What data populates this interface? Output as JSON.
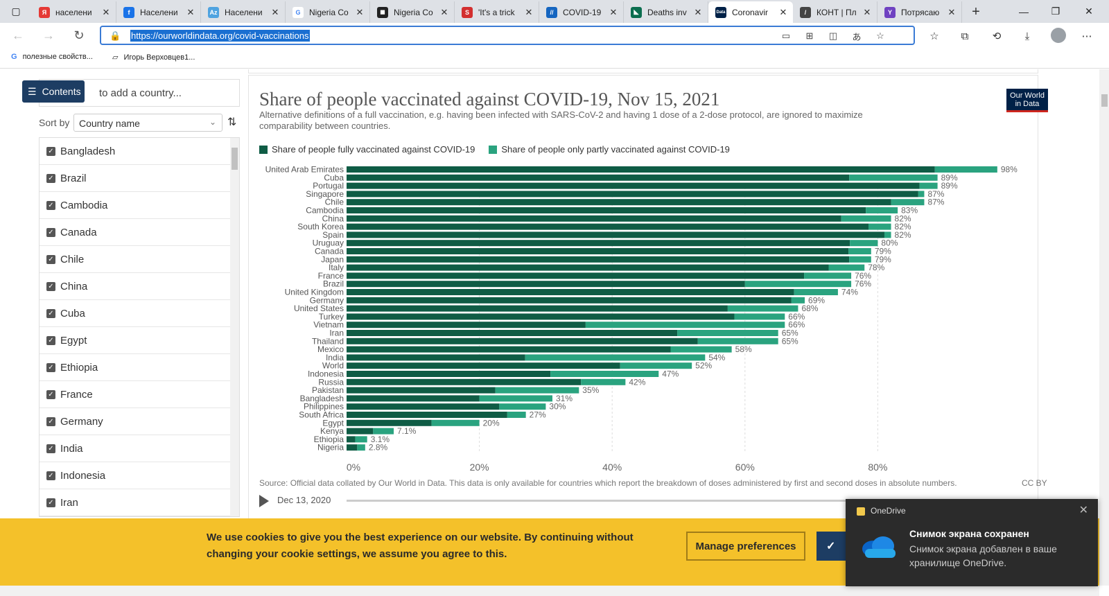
{
  "browser": {
    "tabs": [
      {
        "label": "населени",
        "fav_color": "#e53935",
        "fav_text": "Я"
      },
      {
        "label": "Населени",
        "fav_color": "#1a73e8",
        "fav_text": "f"
      },
      {
        "label": "Населени",
        "fav_color": "#4fa3e0",
        "fav_text": "Az"
      },
      {
        "label": "Nigeria Co",
        "fav_color": "#ffffff",
        "fav_text": "G"
      },
      {
        "label": "Nigeria Co",
        "fav_color": "#222222",
        "fav_text": "◼"
      },
      {
        "label": "'It's a trick",
        "fav_color": "#d32f2f",
        "fav_text": "S"
      },
      {
        "label": "COVID-19",
        "fav_color": "#1565c0",
        "fav_text": "//"
      },
      {
        "label": "Deaths inv",
        "fav_color": "#0b6e4f",
        "fav_text": "◣"
      },
      {
        "label": "Coronavir",
        "fav_color": "#002147",
        "fav_text": "Data"
      },
      {
        "label": "КОНТ | Пл",
        "fav_color": "#444444",
        "fav_text": "/"
      },
      {
        "label": "Потрясаю",
        "fav_color": "#6f42c1",
        "fav_text": "Y"
      }
    ],
    "active_tab_index": 8,
    "url": "https://ourworldindata.org/covid-vaccinations",
    "bookmarks": [
      "полезные свойств...",
      "Игорь Верховцев1..."
    ]
  },
  "sidebar": {
    "contents_label": "Contents",
    "search_placeholder": "to add a country...",
    "sort_label": "Sort by",
    "sort_value": "Country name",
    "countries": [
      "Bangladesh",
      "Brazil",
      "Cambodia",
      "Canada",
      "Chile",
      "China",
      "Cuba",
      "Egypt",
      "Ethiopia",
      "France",
      "Germany",
      "India",
      "Indonesia",
      "Iran"
    ]
  },
  "chart_header": {
    "title": "Share of people vaccinated against COVID-19, Nov 15, 2021",
    "subtitle": "Alternative definitions of a full vaccination, e.g. having been infected with SARS-CoV-2 and having 1 dose of a 2-dose protocol, are ignored to maximize comparability between countries.",
    "logo_line1": "Our World",
    "logo_line2": "in Data",
    "source": "Source: Official data collated by Our World in Data. This data is only available for countries which report the breakdown of doses administered by first and second doses in absolute numbers.",
    "license": "CC BY",
    "timeline_start": "Dec 13, 2020"
  },
  "chart_data": {
    "type": "bar",
    "orientation": "horizontal",
    "stacked": true,
    "series": [
      {
        "name": "Share of people fully vaccinated against COVID-19",
        "color": "#0f5c45",
        "values": [
          88.6,
          75.7,
          86.3,
          86.1,
          82.0,
          78.2,
          74.5,
          78.6,
          81.0,
          75.8,
          75.6,
          75.7,
          72.6,
          68.9,
          60.0,
          67.4,
          67.0,
          57.4,
          58.4,
          36.0,
          49.8,
          52.9,
          48.8,
          26.9,
          41.2,
          30.7,
          35.3,
          22.4,
          20.0,
          23.0,
          24.2,
          12.8,
          4.0,
          1.3,
          1.6
        ]
      },
      {
        "name": "Share of people only partly vaccinated against COVID-19",
        "color": "#2aa37f",
        "values": [
          9.4,
          13.3,
          2.7,
          0.9,
          5.0,
          4.8,
          7.5,
          3.4,
          1.0,
          4.2,
          3.4,
          3.3,
          5.4,
          7.1,
          16.0,
          6.6,
          2.0,
          10.6,
          7.6,
          30.0,
          15.2,
          12.1,
          9.2,
          27.1,
          10.8,
          16.3,
          6.7,
          12.6,
          11.0,
          7.0,
          2.8,
          7.2,
          3.1,
          1.8,
          1.2
        ]
      }
    ],
    "categories": [
      "United Arab Emirates",
      "Cuba",
      "Portugal",
      "Singapore",
      "Chile",
      "Cambodia",
      "China",
      "South Korea",
      "Spain",
      "Uruguay",
      "Canada",
      "Japan",
      "Italy",
      "France",
      "Brazil",
      "United Kingdom",
      "Germany",
      "United States",
      "Turkey",
      "Vietnam",
      "Iran",
      "Thailand",
      "Mexico",
      "India",
      "World",
      "Indonesia",
      "Russia",
      "Pakistan",
      "Bangladesh",
      "Philippines",
      "South Africa",
      "Egypt",
      "Kenya",
      "Ethiopia",
      "Nigeria"
    ],
    "total_labels": [
      "98%",
      "89%",
      "89%",
      "87%",
      "87%",
      "83%",
      "82%",
      "82%",
      "82%",
      "80%",
      "79%",
      "79%",
      "78%",
      "76%",
      "76%",
      "74%",
      "69%",
      "68%",
      "66%",
      "66%",
      "65%",
      "65%",
      "58%",
      "54%",
      "52%",
      "47%",
      "42%",
      "35%",
      "31%",
      "30%",
      "27%",
      "20%",
      "7.1%",
      "3.1%",
      "2.8%"
    ],
    "xticks": [
      "0%",
      "20%",
      "40%",
      "60%",
      "80%"
    ],
    "xlim": [
      0,
      100
    ],
    "grid": true,
    "legend_position": "top-left"
  },
  "cookie": {
    "text": "We use cookies to give you the best experience on our website. By continuing without changing your cookie settings, we assume you agree to this.",
    "manage_label": "Manage preferences",
    "accept_label": "I"
  },
  "toast": {
    "app": "OneDrive",
    "title": "Снимок экрана сохранен",
    "body": "Снимок экрана добавлен в ваше хранилище OneDrive."
  }
}
